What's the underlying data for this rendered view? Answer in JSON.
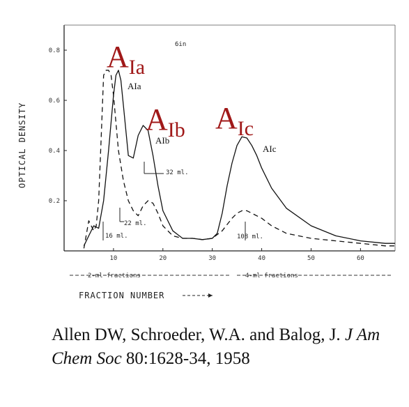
{
  "chart_data": {
    "type": "line",
    "xlabel": "FRACTION NUMBER",
    "ylabel": "OPTICAL DENSITY",
    "xlim": [
      0,
      67
    ],
    "ylim": [
      0,
      0.9
    ],
    "x_ticks": [
      "10",
      "20",
      "30",
      "40",
      "50",
      "60"
    ],
    "y_ticks": [
      "0.2",
      "0.4",
      "0.6",
      "0.8"
    ],
    "top_label": "6in",
    "fraction_notes": [
      "2-ml fractions",
      "4-ml fractions"
    ],
    "volume_markers": [
      "16 ml.",
      "22 ml.",
      "32 ml.",
      "108 ml."
    ],
    "peak_labels_small": [
      "AIa",
      "AIb",
      "AIc"
    ],
    "peak_labels_large": [
      {
        "main": "A",
        "sub": "Ia",
        "x": 11,
        "y": 0.78
      },
      {
        "main": "A",
        "sub": "Ib",
        "x": 17.5,
        "y": 0.5
      },
      {
        "main": "A",
        "sub": "Ic",
        "x": 34,
        "y": 0.52
      }
    ],
    "series": [
      {
        "style": "solid",
        "x": [
          4,
          5,
          6,
          7,
          8,
          9,
          10,
          10.5,
          11,
          11.5,
          12,
          13,
          14,
          15,
          16,
          17,
          18,
          19,
          20,
          22,
          24,
          26,
          28,
          30,
          31,
          32,
          33,
          34,
          35,
          36,
          37,
          38,
          39,
          40,
          42,
          45,
          50,
          55,
          60,
          65,
          67
        ],
        "y": [
          0.02,
          0.06,
          0.1,
          0.09,
          0.2,
          0.4,
          0.62,
          0.7,
          0.72,
          0.68,
          0.58,
          0.38,
          0.37,
          0.46,
          0.5,
          0.48,
          0.38,
          0.26,
          0.16,
          0.08,
          0.05,
          0.05,
          0.045,
          0.05,
          0.07,
          0.15,
          0.26,
          0.35,
          0.42,
          0.455,
          0.45,
          0.42,
          0.38,
          0.33,
          0.25,
          0.17,
          0.1,
          0.06,
          0.04,
          0.03,
          0.03
        ]
      },
      {
        "style": "dashed",
        "x": [
          4,
          5,
          6,
          6.5,
          7,
          7.5,
          8,
          8.5,
          9,
          9.5,
          10,
          11,
          12,
          13,
          14,
          15,
          16,
          17,
          18,
          19,
          20,
          22,
          24,
          26,
          28,
          30,
          32,
          34,
          35,
          36,
          37,
          38,
          40,
          42,
          45,
          50,
          55,
          60,
          65,
          67
        ],
        "y": [
          0.01,
          0.12,
          0.08,
          0.1,
          0.2,
          0.45,
          0.7,
          0.72,
          0.72,
          0.7,
          0.62,
          0.4,
          0.28,
          0.2,
          0.16,
          0.14,
          0.18,
          0.2,
          0.19,
          0.15,
          0.1,
          0.06,
          0.05,
          0.05,
          0.045,
          0.05,
          0.08,
          0.13,
          0.15,
          0.16,
          0.16,
          0.15,
          0.13,
          0.1,
          0.07,
          0.05,
          0.04,
          0.03,
          0.02,
          0.02
        ]
      }
    ]
  },
  "citation": {
    "authors": "Allen DW, Schroeder, W.A. and Balog, J.",
    "journal": "J Am Chem Soc",
    "ref": "80:1628-34, 1958"
  }
}
